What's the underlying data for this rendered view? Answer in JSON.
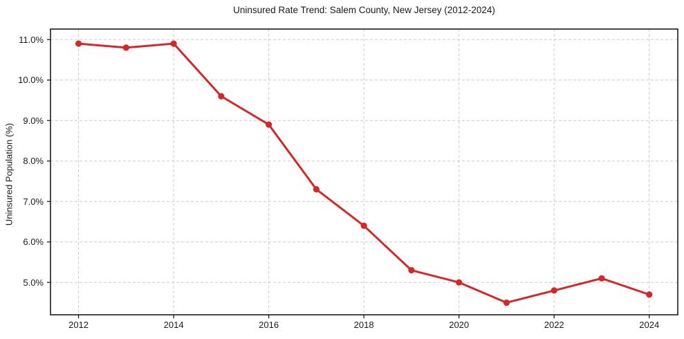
{
  "chart_data": {
    "type": "line",
    "title": "Uninsured Rate Trend: Salem County, New Jersey (2012-2024)",
    "xlabel": "",
    "ylabel": "Uninsured Population (%)",
    "x": [
      2012,
      2013,
      2014,
      2015,
      2016,
      2017,
      2018,
      2019,
      2020,
      2021,
      2022,
      2023,
      2024
    ],
    "series": [
      {
        "name": "Uninsured Rate",
        "values": [
          10.9,
          10.8,
          10.9,
          9.6,
          8.9,
          7.3,
          6.4,
          5.3,
          5.0,
          4.5,
          4.8,
          5.1,
          4.7
        ]
      }
    ],
    "x_ticks": [
      2012,
      2014,
      2016,
      2018,
      2020,
      2022,
      2024
    ],
    "x_tick_labels": [
      "2012",
      "2014",
      "2016",
      "2018",
      "2020",
      "2022",
      "2024"
    ],
    "y_ticks": [
      5,
      6,
      7,
      8,
      9,
      10,
      11
    ],
    "y_tick_labels": [
      "5.0%",
      "6.0%",
      "7.0%",
      "8.0%",
      "9.0%",
      "10.0%",
      "11.0%"
    ],
    "xlim": [
      2011.41,
      2024.6
    ],
    "ylim": [
      4.2,
      11.26
    ],
    "grid": true,
    "grid_style": "dashed",
    "legend": false,
    "marker": "circle",
    "colors": {
      "line": "#d62728",
      "grid": "#cccccc",
      "spine": "#1a1a1a",
      "text": "#1a1a1a",
      "background": "#ffffff"
    }
  }
}
